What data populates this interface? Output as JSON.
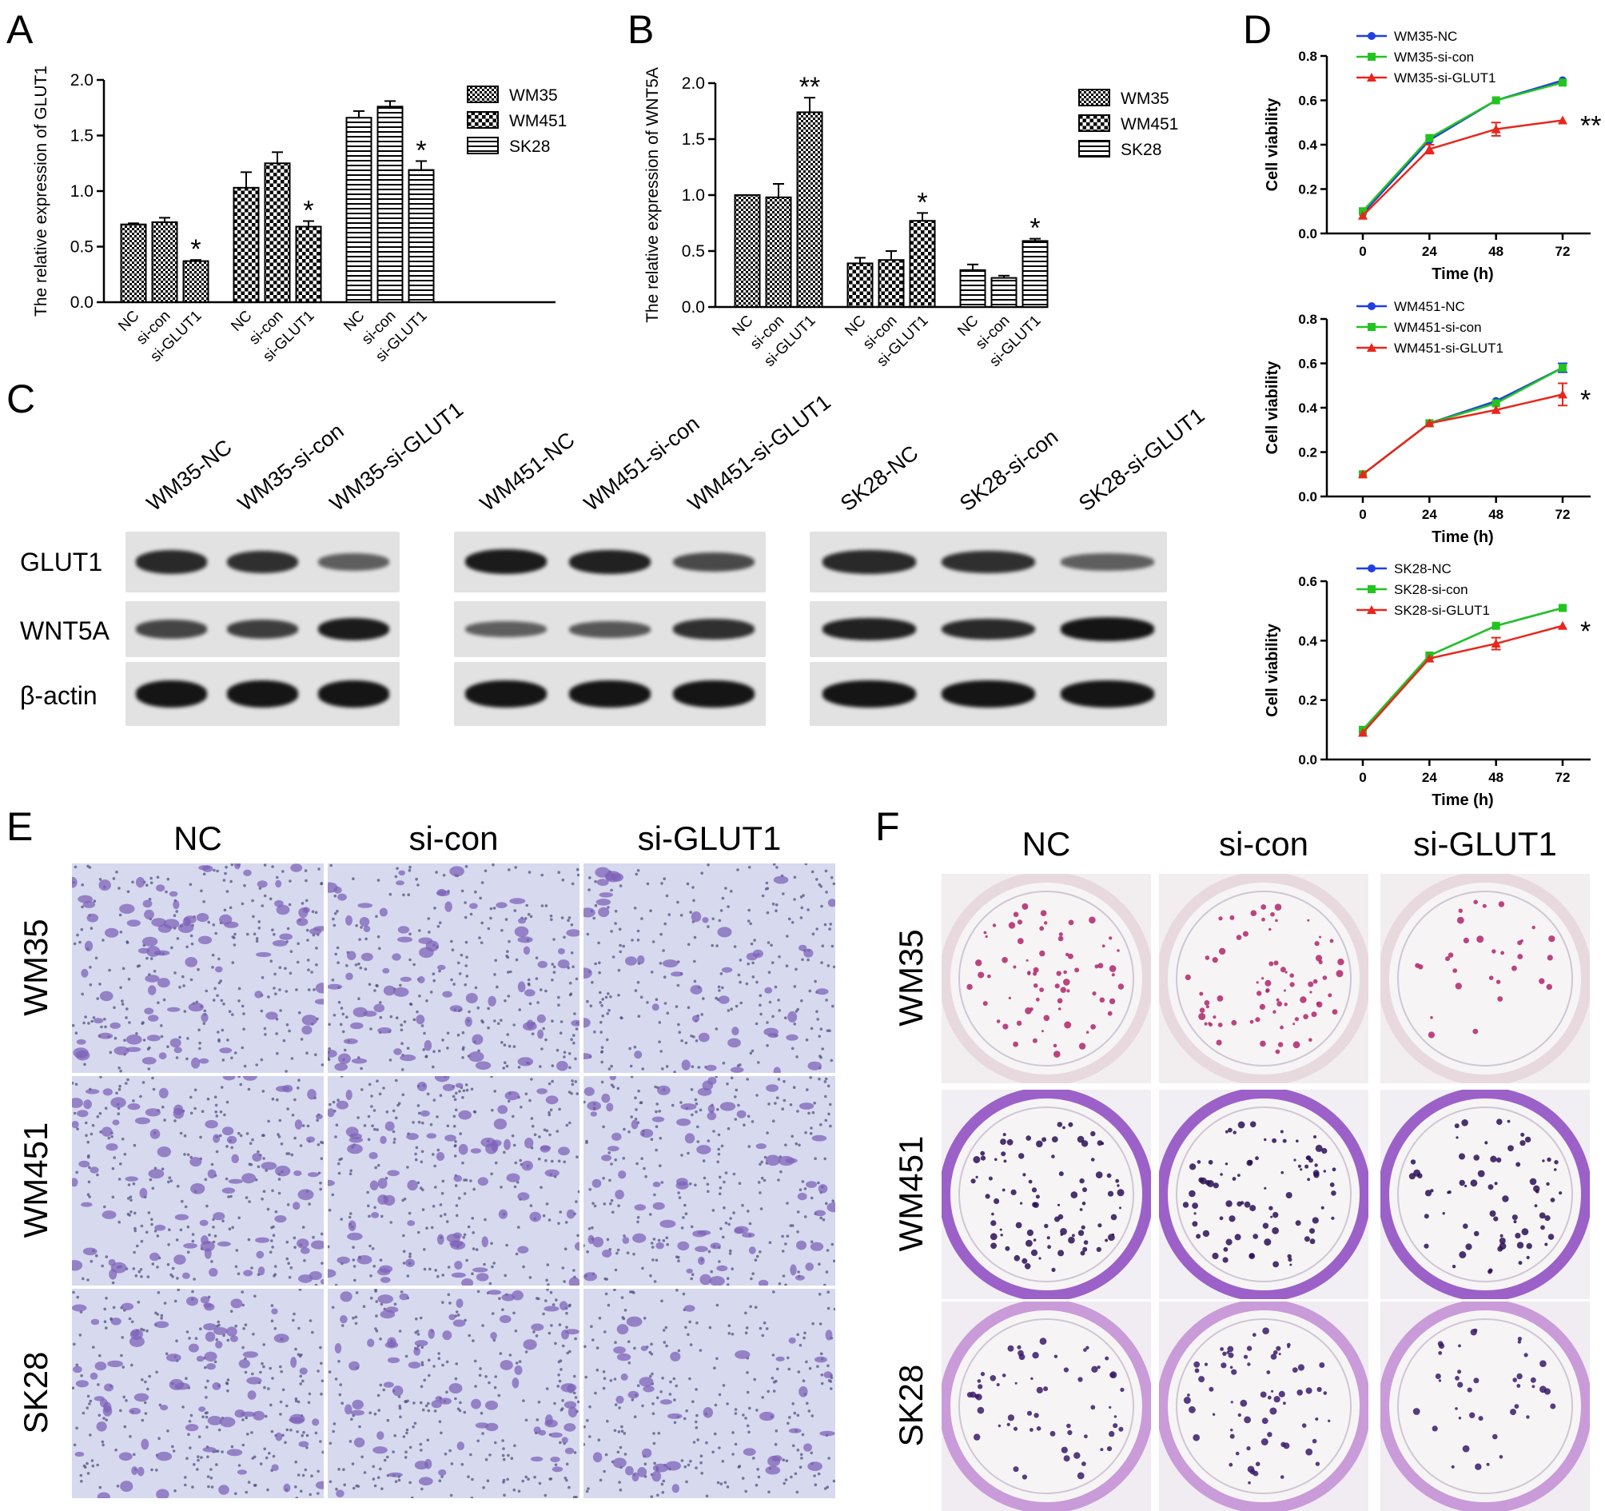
{
  "panels": {
    "a": "A",
    "b": "B",
    "c": "C",
    "d": "D",
    "e": "E",
    "f": "F"
  },
  "chart_data": [
    {
      "id": "A",
      "type": "bar",
      "ylabel": "The relative expression of GLUT1",
      "ylim": [
        0,
        2.0
      ],
      "yticks": [
        "0.0",
        "0.5",
        "1.0",
        "1.5",
        "2.0"
      ],
      "categories": [
        "NC",
        "si-con",
        "si-GLUT1"
      ],
      "series": [
        {
          "name": "WM35",
          "values": [
            0.7,
            0.72,
            0.37
          ],
          "errors": [
            0.01,
            0.04,
            0.01
          ],
          "sig": [
            "",
            "",
            "*"
          ]
        },
        {
          "name": "WM451",
          "values": [
            1.03,
            1.25,
            0.68
          ],
          "errors": [
            0.14,
            0.1,
            0.05
          ],
          "sig": [
            "",
            "",
            "*"
          ]
        },
        {
          "name": "SK28",
          "values": [
            1.66,
            1.76,
            1.19
          ],
          "errors": [
            0.06,
            0.05,
            0.08
          ],
          "sig": [
            "",
            "",
            "*"
          ]
        }
      ]
    },
    {
      "id": "B",
      "type": "bar",
      "ylabel": "The relative expression of WNT5A",
      "ylim": [
        0,
        2.0
      ],
      "yticks": [
        "0.0",
        "0.5",
        "1.0",
        "1.5",
        "2.0"
      ],
      "categories": [
        "NC",
        "si-con",
        "si-GLUT1"
      ],
      "series": [
        {
          "name": "WM35",
          "values": [
            1.0,
            0.98,
            1.74
          ],
          "errors": [
            0.0,
            0.12,
            0.13
          ],
          "sig": [
            "",
            "",
            "**"
          ]
        },
        {
          "name": "WM451",
          "values": [
            0.39,
            0.42,
            0.77
          ],
          "errors": [
            0.05,
            0.08,
            0.07
          ],
          "sig": [
            "",
            "",
            "*"
          ]
        },
        {
          "name": "SK28",
          "values": [
            0.33,
            0.26,
            0.59
          ],
          "errors": [
            0.05,
            0.02,
            0.02
          ],
          "sig": [
            "",
            "",
            "*"
          ]
        }
      ]
    },
    {
      "id": "D1",
      "type": "line",
      "xlabel": "Time (h)",
      "ylabel": "Cell viability",
      "x": [
        0,
        24,
        48,
        72
      ],
      "ylim": [
        0,
        0.8
      ],
      "yticks": [
        "0.0",
        "0.2",
        "0.4",
        "0.6",
        "0.8"
      ],
      "sig": "**",
      "series": [
        {
          "name": "WM35-NC",
          "color": "#1f3fe0",
          "values": [
            0.09,
            0.42,
            0.6,
            0.69
          ],
          "errors": [
            0,
            0,
            0,
            0
          ]
        },
        {
          "name": "WM35-si-con",
          "color": "#22c41e",
          "values": [
            0.1,
            0.43,
            0.6,
            0.68
          ],
          "errors": [
            0,
            0,
            0,
            0
          ]
        },
        {
          "name": "WM35-si-GLUT1",
          "color": "#e8261c",
          "values": [
            0.08,
            0.38,
            0.47,
            0.51
          ],
          "errors": [
            0,
            0.02,
            0.03,
            0
          ]
        }
      ]
    },
    {
      "id": "D2",
      "type": "line",
      "xlabel": "Time (h)",
      "ylabel": "Cell viability",
      "x": [
        0,
        24,
        48,
        72
      ],
      "ylim": [
        0,
        0.8
      ],
      "yticks": [
        "0.0",
        "0.2",
        "0.4",
        "0.6",
        "0.8"
      ],
      "sig": "*",
      "series": [
        {
          "name": "WM451-NC",
          "color": "#1f3fe0",
          "values": [
            0.1,
            0.33,
            0.43,
            0.58
          ],
          "errors": [
            0,
            0,
            0,
            0.02
          ]
        },
        {
          "name": "WM451-si-con",
          "color": "#22c41e",
          "values": [
            0.1,
            0.33,
            0.42,
            0.58
          ],
          "errors": [
            0,
            0,
            0,
            0
          ]
        },
        {
          "name": "WM451-si-GLUT1",
          "color": "#e8261c",
          "values": [
            0.1,
            0.33,
            0.39,
            0.46
          ],
          "errors": [
            0,
            0,
            0,
            0.05
          ]
        }
      ]
    },
    {
      "id": "D3",
      "type": "line",
      "xlabel": "Time (h)",
      "ylabel": "Cell viability",
      "x": [
        0,
        24,
        48,
        72
      ],
      "ylim": [
        0,
        0.6
      ],
      "yticks": [
        "0.0",
        "0.2",
        "0.4",
        "0.6"
      ],
      "sig": "*",
      "series": [
        {
          "name": "SK28-NC",
          "color": "#1f3fe0",
          "values": [
            0.09,
            0.35,
            0.45,
            0.51
          ],
          "errors": [
            0,
            0,
            0,
            0
          ]
        },
        {
          "name": "SK28-si-con",
          "color": "#22c41e",
          "values": [
            0.1,
            0.35,
            0.45,
            0.51
          ],
          "errors": [
            0,
            0,
            0,
            0
          ]
        },
        {
          "name": "SK28-si-GLUT1",
          "color": "#e8261c",
          "values": [
            0.09,
            0.34,
            0.39,
            0.45
          ],
          "errors": [
            0,
            0,
            0.02,
            0
          ]
        }
      ]
    }
  ],
  "western": {
    "rows": [
      "GLUT1",
      "WNT5A",
      "β-actin"
    ],
    "groups": [
      {
        "lanes": [
          "WM35-NC",
          "WM35-si-con",
          "WM35-si-GLUT1"
        ],
        "intensity": [
          [
            0.85,
            0.8,
            0.45
          ],
          [
            0.65,
            0.7,
            0.95
          ],
          [
            1,
            1,
            1
          ]
        ]
      },
      {
        "lanes": [
          "WM451-NC",
          "WM451-si-con",
          "WM451-si-GLUT1"
        ],
        "intensity": [
          [
            0.95,
            0.9,
            0.6
          ],
          [
            0.45,
            0.5,
            0.8
          ],
          [
            1,
            1,
            1
          ]
        ]
      },
      {
        "lanes": [
          "SK28-NC",
          "SK28-si-con",
          "SK28-si-GLUT1"
        ],
        "intensity": [
          [
            0.85,
            0.8,
            0.45
          ],
          [
            0.9,
            0.85,
            1.0
          ],
          [
            1,
            1,
            1
          ]
        ]
      }
    ]
  },
  "transwell": {
    "columns": [
      "NC",
      "si-con",
      "si-GLUT1"
    ],
    "rows": [
      "WM35",
      "WM451",
      "SK28"
    ]
  },
  "colony": {
    "columns": [
      "NC",
      "si-con",
      "si-GLUT1"
    ],
    "rows": [
      "WM35",
      "WM451",
      "SK28"
    ]
  }
}
